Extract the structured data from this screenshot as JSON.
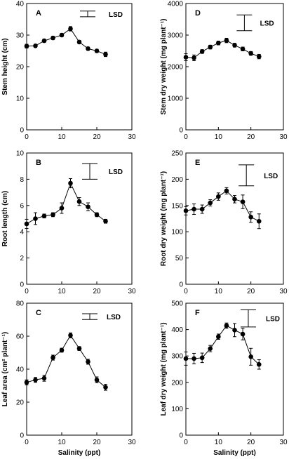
{
  "figure": {
    "shared_xlabel": "Salinity (ppt)"
  },
  "chart_data": [
    {
      "panel": "A",
      "type": "line",
      "ylabel": "Stem height (cm)",
      "xlabel": "",
      "xlim": [
        0,
        30
      ],
      "ylim": [
        0,
        40
      ],
      "xticks": [
        0,
        10,
        20,
        30
      ],
      "yticks": [
        0,
        10,
        20,
        30,
        40
      ],
      "lsd_label": "LSD",
      "lsd_value": 1.8,
      "series": [
        {
          "x": [
            0,
            2.5,
            5,
            7.5,
            10,
            12.5,
            15,
            17.5,
            20,
            22.5
          ],
          "y": [
            26.5,
            26.6,
            28.2,
            29.1,
            30.0,
            32.0,
            27.8,
            25.7,
            25.0,
            23.9
          ],
          "err": [
            0.6,
            0.5,
            0.5,
            0.5,
            0.5,
            0.7,
            0.5,
            0.5,
            0.5,
            0.7
          ]
        }
      ]
    },
    {
      "panel": "D",
      "type": "line",
      "ylabel": "Stem dry weight (mg plant⁻¹)",
      "xlabel": "",
      "xlim": [
        0,
        30
      ],
      "ylim": [
        0,
        4000
      ],
      "xticks": [
        0,
        10,
        20,
        30
      ],
      "yticks": [
        0,
        1000,
        2000,
        3000,
        4000
      ],
      "lsd_label": "LSD",
      "lsd_value": 500,
      "series": [
        {
          "x": [
            0,
            2.5,
            5,
            7.5,
            10,
            12.5,
            15,
            17.5,
            20,
            22.5
          ],
          "y": [
            2300,
            2280,
            2480,
            2620,
            2750,
            2830,
            2680,
            2560,
            2420,
            2320
          ],
          "err": [
            110,
            90,
            60,
            60,
            60,
            70,
            60,
            60,
            60,
            70
          ]
        }
      ]
    },
    {
      "panel": "B",
      "type": "line",
      "ylabel": "Root length (cm)",
      "xlabel": "",
      "xlim": [
        0,
        30
      ],
      "ylim": [
        0,
        10
      ],
      "xticks": [
        0,
        10,
        20,
        30
      ],
      "yticks": [
        0,
        2,
        4,
        6,
        8,
        10
      ],
      "lsd_label": "LSD",
      "lsd_value": 1.2,
      "series": [
        {
          "x": [
            0,
            2.5,
            5,
            7.5,
            10,
            12.5,
            15,
            17.5,
            20,
            22.5
          ],
          "y": [
            4.6,
            5.0,
            5.2,
            5.3,
            5.8,
            7.7,
            6.3,
            5.9,
            5.3,
            4.8
          ],
          "err": [
            0.35,
            0.45,
            0.15,
            0.15,
            0.4,
            0.35,
            0.3,
            0.3,
            0.15,
            0.15
          ]
        }
      ]
    },
    {
      "panel": "E",
      "type": "line",
      "ylabel": "Root dry weight (mg plant⁻¹)",
      "xlabel": "",
      "xlim": [
        0,
        30
      ],
      "ylim": [
        0,
        250
      ],
      "xticks": [
        0,
        10,
        20,
        30
      ],
      "yticks": [
        0,
        50,
        100,
        150,
        200,
        250
      ],
      "lsd_label": "LSD",
      "lsd_value": 40,
      "series": [
        {
          "x": [
            0,
            2.5,
            5,
            7.5,
            10,
            12.5,
            15,
            17.5,
            20,
            22.5
          ],
          "y": [
            140,
            143,
            143,
            155,
            167,
            178,
            162,
            157,
            128,
            120
          ],
          "err": [
            8,
            10,
            8,
            6,
            7,
            6,
            7,
            13,
            10,
            14
          ]
        }
      ]
    },
    {
      "panel": "C",
      "type": "line",
      "ylabel": "Leaf area (cm² plant⁻¹)",
      "xlabel": "Salinity (ppt)",
      "xlim": [
        0,
        30
      ],
      "ylim": [
        0,
        80
      ],
      "xticks": [
        0,
        10,
        20,
        30
      ],
      "yticks": [
        0,
        20,
        40,
        60,
        80
      ],
      "lsd_label": "LSD",
      "lsd_value": 3.5,
      "series": [
        {
          "x": [
            0,
            2.5,
            5,
            7.5,
            10,
            12.5,
            15,
            17.5,
            20,
            22.5
          ],
          "y": [
            32,
            33.5,
            34.5,
            47,
            51.5,
            60.5,
            52.5,
            44.5,
            33.5,
            29
          ],
          "err": [
            1.5,
            1.5,
            1.8,
            1.5,
            1.2,
            1.5,
            1.2,
            1.5,
            1.8,
            1.8
          ]
        }
      ]
    },
    {
      "panel": "F",
      "type": "line",
      "ylabel": "Leaf dry weight (mg plant⁻¹)",
      "xlabel": "Salinity (ppt)",
      "xlim": [
        0,
        30
      ],
      "ylim": [
        0,
        500
      ],
      "xticks": [
        0,
        10,
        20,
        30
      ],
      "yticks": [
        0,
        100,
        200,
        300,
        400,
        500
      ],
      "lsd_label": "LSD",
      "lsd_value": 65,
      "series": [
        {
          "x": [
            0,
            2.5,
            5,
            7.5,
            10,
            12.5,
            15,
            17.5,
            20,
            22.5
          ],
          "y": [
            290,
            290,
            293,
            328,
            373,
            415,
            398,
            383,
            297,
            268
          ],
          "err": [
            25,
            20,
            18,
            12,
            10,
            10,
            25,
            22,
            32,
            18
          ]
        }
      ]
    }
  ]
}
